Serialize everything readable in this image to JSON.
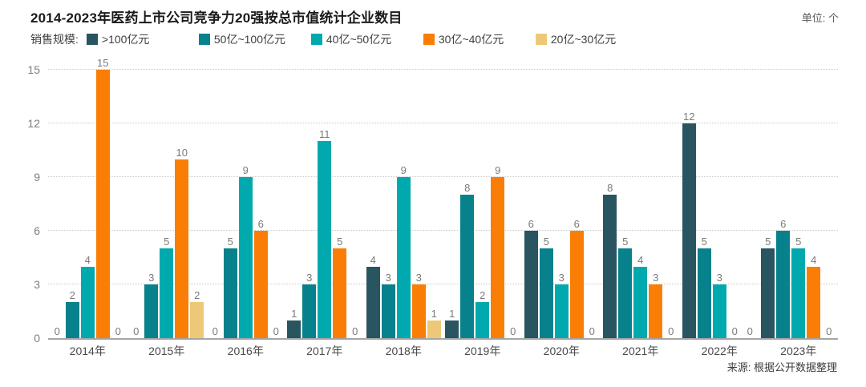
{
  "header": {
    "title": "2014-2023年医药上市公司竞争力20强按总市值统计企业数目",
    "unit_label": "单位: 个"
  },
  "legend": {
    "prefix": "销售规模:",
    "items": [
      {
        "label": ">100亿元",
        "color": "#295560"
      },
      {
        "label": "50亿~100亿元",
        "color": "#07818b"
      },
      {
        "label": "40亿~50亿元",
        "color": "#00a9ad"
      },
      {
        "label": "30亿~40亿元",
        "color": "#fa7e05"
      },
      {
        "label": "20亿~30亿元",
        "color": "#edc977"
      }
    ]
  },
  "chart_data": {
    "type": "bar",
    "title": "2014-2023年医药上市公司竞争力20强按总市值统计企业数目",
    "xlabel": "",
    "ylabel": "单位: 个",
    "categories": [
      "2014年",
      "2015年",
      "2016年",
      "2017年",
      "2018年",
      "2019年",
      "2020年",
      "2021年",
      "2022年",
      "2023年"
    ],
    "series": [
      {
        "name": ">100亿元",
        "color": "#295560",
        "values": [
          0,
          0,
          0,
          1,
          4,
          1,
          6,
          8,
          12,
          5
        ]
      },
      {
        "name": "50亿~100亿元",
        "color": "#07818b",
        "values": [
          2,
          3,
          5,
          3,
          3,
          8,
          5,
          5,
          5,
          6
        ]
      },
      {
        "name": "40亿~50亿元",
        "color": "#00a9ad",
        "values": [
          4,
          5,
          9,
          11,
          9,
          2,
          3,
          4,
          3,
          5
        ]
      },
      {
        "name": "30亿~40亿元",
        "color": "#fa7e05",
        "values": [
          15,
          10,
          6,
          5,
          3,
          9,
          6,
          3,
          0,
          4
        ]
      },
      {
        "name": "20亿~30亿元",
        "color": "#edc977",
        "values": [
          0,
          2,
          0,
          0,
          1,
          0,
          0,
          0,
          0,
          0
        ]
      }
    ],
    "yticks": [
      0,
      3,
      6,
      9,
      12,
      15
    ],
    "ylim": [
      0,
      15
    ],
    "grid": "horizontal-dotted",
    "legend_position": "top-left",
    "value_labels": true
  },
  "footer": {
    "source": "来源: 根据公开数据整理"
  }
}
